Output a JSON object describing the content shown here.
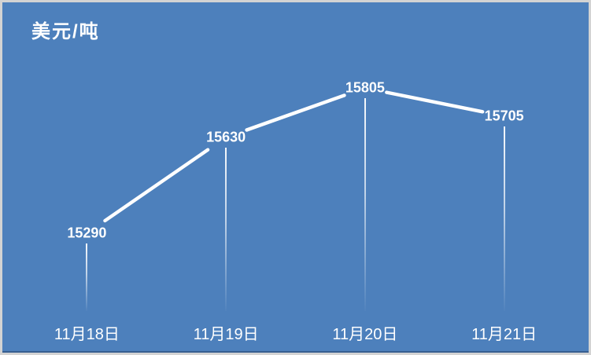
{
  "chart_data": {
    "type": "line",
    "title": "美元/吨",
    "categories": [
      "11月18日",
      "11月19日",
      "11月20日",
      "11月21日"
    ],
    "values": [
      15290,
      15630,
      15805,
      15705
    ],
    "data_labels": [
      "15290",
      "15630",
      "15805",
      "15705"
    ],
    "ylim": [
      15000,
      16000
    ],
    "legend": "none",
    "gridlines": false,
    "x_axis_line": false,
    "y_axis_labels": false,
    "drop_lines": true,
    "line_color": "#FFFFFF",
    "text_color": "#FFFFFF",
    "background_color": "#4D80BC",
    "border_color": "#D3D3D3"
  }
}
